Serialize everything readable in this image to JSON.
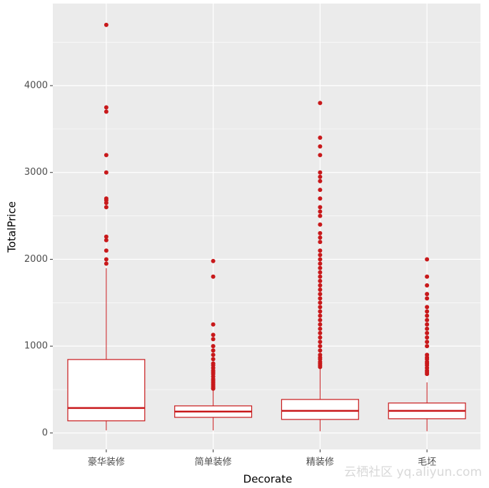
{
  "chart_data": {
    "type": "box",
    "x_label": "Decorate",
    "y_label": "TotalPrice",
    "watermark": "云栖社区 yq.aliyun.com",
    "categories": [
      "豪华装修",
      "简单装修",
      "精装修",
      "毛坯"
    ],
    "color": "#c8191b",
    "box_fill": "#ffffff",
    "grid": true,
    "ylim": [
      -190,
      4945
    ],
    "yticks": [
      0,
      1000,
      2000,
      3000,
      4000
    ],
    "y_minor_ticks": [
      500,
      1500,
      2500,
      3500,
      4500
    ],
    "boxes": [
      {
        "min": 30,
        "q1": 140,
        "median": 288,
        "q3": 846,
        "max": 1898,
        "outliers": [
          4700,
          3750,
          3700,
          3200,
          3000,
          2700,
          2680,
          2650,
          2600,
          2260,
          2220,
          2100,
          2000,
          1950
        ]
      },
      {
        "min": 30,
        "q1": 180,
        "median": 246,
        "q3": 312,
        "max": 490,
        "outliers": [
          1980,
          1800,
          1250,
          1130,
          1080,
          1000,
          950,
          900,
          850,
          800,
          780,
          750,
          720,
          700,
          680,
          650,
          620,
          600,
          580,
          560,
          540,
          520,
          510
        ]
      },
      {
        "min": 20,
        "q1": 156,
        "median": 255,
        "q3": 386,
        "max": 750,
        "outliers": [
          3800,
          3400,
          3300,
          3200,
          3000,
          2950,
          2900,
          2800,
          2700,
          2600,
          2550,
          2500,
          2400,
          2300,
          2250,
          2200,
          2100,
          2050,
          2000,
          1950,
          1900,
          1850,
          1800,
          1750,
          1700,
          1650,
          1600,
          1550,
          1500,
          1450,
          1400,
          1350,
          1300,
          1250,
          1200,
          1150,
          1100,
          1050,
          1000,
          950,
          900,
          870,
          850,
          820,
          800,
          780,
          760
        ]
      },
      {
        "min": 20,
        "q1": 164,
        "median": 255,
        "q3": 345,
        "max": 583,
        "outliers": [
          2000,
          1800,
          1700,
          1600,
          1550,
          1450,
          1400,
          1350,
          1300,
          1250,
          1200,
          1150,
          1100,
          1050,
          1000,
          900,
          870,
          850,
          820,
          800,
          780,
          750,
          720,
          700,
          680
        ]
      }
    ]
  }
}
